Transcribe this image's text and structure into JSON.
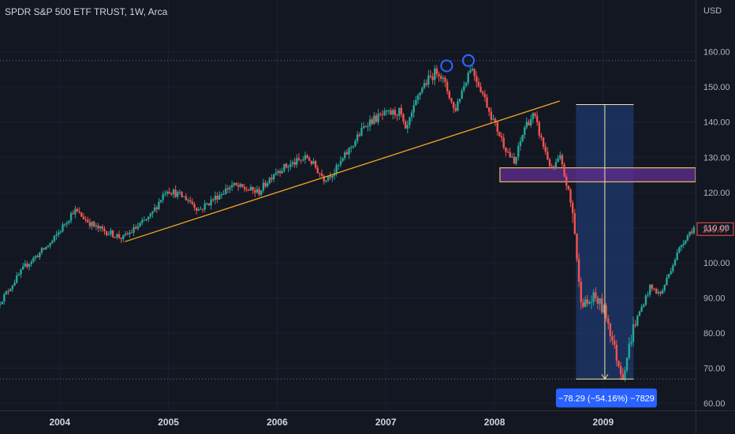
{
  "header": {
    "title": "SPDR S&P 500 ETF TRUST, 1W, Arca",
    "currency": "USD"
  },
  "colors": {
    "background": "#131722",
    "up": "#26a69a",
    "down": "#ef5350",
    "trendline": "#f5a623",
    "zone_fill": "#5b2d8c",
    "zone_border": "#e6c15a",
    "measure_fill": "#1e3a6e",
    "measure_line": "#f0e6a0",
    "circle": "#2962ff",
    "price_label": "#ef5350",
    "badge": "#2962ff"
  },
  "chart_data": {
    "type": "candlestick",
    "title": "SPDR S&P 500 ETF TRUST, 1W, Arca",
    "y_axis": {
      "unit": "USD",
      "ticks": [
        "160.00",
        "150.00",
        "140.00",
        "130.00",
        "120.00",
        "110.00",
        "100.00",
        "90.00",
        "80.00",
        "70.00",
        "60.00"
      ],
      "range": [
        58,
        168
      ]
    },
    "x_axis": {
      "ticks": [
        "2004",
        "2005",
        "2006",
        "2007",
        "2008",
        "2009"
      ],
      "range": [
        2003.45,
        2009.85
      ]
    },
    "price_anchors": [
      [
        2003.45,
        88
      ],
      [
        2003.7,
        99
      ],
      [
        2003.95,
        106
      ],
      [
        2004.15,
        115
      ],
      [
        2004.35,
        110
      ],
      [
        2004.6,
        107
      ],
      [
        2004.85,
        113
      ],
      [
        2005.0,
        121
      ],
      [
        2005.2,
        118
      ],
      [
        2005.3,
        115
      ],
      [
        2005.6,
        122
      ],
      [
        2005.85,
        120
      ],
      [
        2006.0,
        126
      ],
      [
        2006.3,
        130
      ],
      [
        2006.45,
        124
      ],
      [
        2006.55,
        126
      ],
      [
        2006.7,
        133
      ],
      [
        2006.85,
        140
      ],
      [
        2007.0,
        142
      ],
      [
        2007.15,
        143
      ],
      [
        2007.2,
        137
      ],
      [
        2007.35,
        150
      ],
      [
        2007.5,
        155
      ],
      [
        2007.6,
        148
      ],
      [
        2007.65,
        143
      ],
      [
        2007.8,
        156
      ],
      [
        2007.9,
        149
      ],
      [
        2008.0,
        141
      ],
      [
        2008.1,
        134
      ],
      [
        2008.2,
        128
      ],
      [
        2008.3,
        139
      ],
      [
        2008.38,
        142
      ],
      [
        2008.45,
        135
      ],
      [
        2008.55,
        126
      ],
      [
        2008.62,
        130
      ],
      [
        2008.7,
        120
      ],
      [
        2008.75,
        112
      ],
      [
        2008.8,
        92
      ],
      [
        2008.85,
        88
      ],
      [
        2008.95,
        90
      ],
      [
        2009.05,
        85
      ],
      [
        2009.15,
        72
      ],
      [
        2009.2,
        68
      ],
      [
        2009.3,
        82
      ],
      [
        2009.45,
        93
      ],
      [
        2009.55,
        91
      ],
      [
        2009.65,
        99
      ],
      [
        2009.75,
        106
      ],
      [
        2009.85,
        110
      ]
    ],
    "last_price": "109.57",
    "trendline": {
      "from": [
        2004.6,
        106
      ],
      "to": [
        2008.6,
        146
      ]
    },
    "horizontal_levels": [
      157.5,
      66.9
    ],
    "zone": {
      "x_from": 2008.05,
      "x_to": 2009.85,
      "y_from": 123,
      "y_to": 127
    },
    "peak_markers": [
      [
        2007.56,
        156.0
      ],
      [
        2007.76,
        157.5
      ]
    ],
    "measure": {
      "x_from": 2008.75,
      "x_to": 2009.28,
      "y_top": 145,
      "y_bottom": 66.9,
      "label": "−78.29 (−54.16%) −7829"
    }
  }
}
